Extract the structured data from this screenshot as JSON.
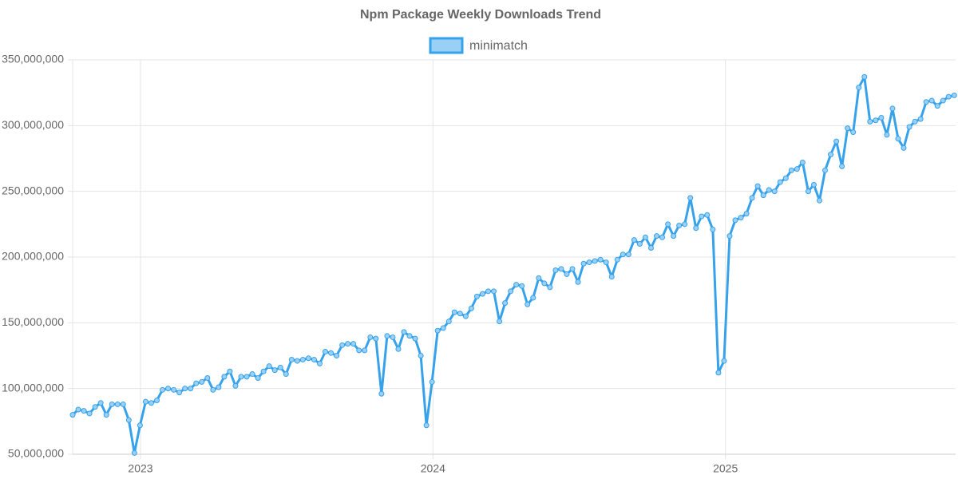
{
  "chart_data": {
    "type": "line",
    "title": "Npm Package Weekly Downloads Trend",
    "legend": "top",
    "grid": true,
    "xlim": [
      2022.768,
      2025.787
    ],
    "xticks": [
      2023,
      2024,
      2025
    ],
    "ylim": [
      50000000,
      350000000
    ],
    "yticks": [
      {
        "value": 50000000,
        "label": "50,000,000"
      },
      {
        "value": 100000000,
        "label": "100,000,000"
      },
      {
        "value": 150000000,
        "label": "150,000,000"
      },
      {
        "value": 200000000,
        "label": "200,000,000"
      },
      {
        "value": 250000000,
        "label": "250,000,000"
      },
      {
        "value": 300000000,
        "label": "300,000,000"
      },
      {
        "value": 350000000,
        "label": "350,000,000"
      }
    ],
    "x": [
      2022.768,
      2022.7872,
      2022.8064,
      2022.8256,
      2022.8448,
      2022.864,
      2022.8832,
      2022.9024,
      2022.9216,
      2022.9408,
      2022.96,
      2022.9792,
      2022.9984,
      2023.0176,
      2023.0368,
      2023.056,
      2023.0752,
      2023.0944,
      2023.1136,
      2023.1328,
      2023.152,
      2023.1712,
      2023.1904,
      2023.2096,
      2023.2288,
      2023.248,
      2023.2672,
      2023.2864,
      2023.3056,
      2023.3248,
      2023.344,
      2023.3632,
      2023.3824,
      2023.4016,
      2023.4208,
      2023.44,
      2023.4592,
      2023.4784,
      2023.4976,
      2023.5168,
      2023.536,
      2023.5552,
      2023.5744,
      2023.5936,
      2023.6128,
      2023.632,
      2023.6512,
      2023.6704,
      2023.6896,
      2023.7088,
      2023.728,
      2023.7472,
      2023.7664,
      2023.7856,
      2023.8048,
      2023.824,
      2023.8432,
      2023.8624,
      2023.8816,
      2023.9008,
      2023.92,
      2023.9392,
      2023.9584,
      2023.9776,
      2023.9968,
      2024.016,
      2024.0352,
      2024.0544,
      2024.0736,
      2024.0928,
      2024.112,
      2024.1312,
      2024.1504,
      2024.1696,
      2024.1888,
      2024.208,
      2024.2272,
      2024.2464,
      2024.2656,
      2024.2848,
      2024.304,
      2024.3232,
      2024.3424,
      2024.3616,
      2024.3808,
      2024.4,
      2024.4192,
      2024.4384,
      2024.4576,
      2024.4768,
      2024.496,
      2024.5152,
      2024.5344,
      2024.5536,
      2024.5728,
      2024.592,
      2024.6112,
      2024.6304,
      2024.6496,
      2024.6688,
      2024.688,
      2024.7072,
      2024.7264,
      2024.7456,
      2024.7648,
      2024.784,
      2024.8032,
      2024.8224,
      2024.8416,
      2024.8608,
      2024.88,
      2024.8992,
      2024.9184,
      2024.9376,
      2024.9568,
      2024.976,
      2024.9952,
      2025.0144,
      2025.0336,
      2025.0528,
      2025.072,
      2025.0912,
      2025.1104,
      2025.1296,
      2025.1488,
      2025.168,
      2025.1872,
      2025.2064,
      2025.2256,
      2025.2448,
      2025.264,
      2025.2832,
      2025.3024,
      2025.3216,
      2025.3408,
      2025.36,
      2025.3792,
      2025.3984,
      2025.4176,
      2025.4368,
      2025.456,
      2025.4752,
      2025.4944,
      2025.5136,
      2025.5328,
      2025.552,
      2025.5712,
      2025.5904,
      2025.6096,
      2025.6288,
      2025.648,
      2025.6672,
      2025.6864,
      2025.7056,
      2025.7248,
      2025.744,
      2025.7632,
      2025.7824
    ],
    "series": [
      {
        "name": "minimatch",
        "color": "#36a2eb",
        "fill": "#9ad0f5",
        "values": [
          80000000,
          84000000,
          83000000,
          81000000,
          86000000,
          89000000,
          80000000,
          88000000,
          88000000,
          88000000,
          76000000,
          51000000,
          72000000,
          90000000,
          89000000,
          91000000,
          99000000,
          100000000,
          99000000,
          97000000,
          100000000,
          100000000,
          104000000,
          105000000,
          108000000,
          99000000,
          101000000,
          109000000,
          113000000,
          102000000,
          109000000,
          109000000,
          111000000,
          108000000,
          113000000,
          117000000,
          114000000,
          116000000,
          111000000,
          122000000,
          121000000,
          122000000,
          123000000,
          122000000,
          119000000,
          128000000,
          127000000,
          125000000,
          133000000,
          134000000,
          134000000,
          129000000,
          129000000,
          139000000,
          138000000,
          96000000,
          140000000,
          139000000,
          130000000,
          143000000,
          140000000,
          138000000,
          125000000,
          72000000,
          105000000,
          144000000,
          146000000,
          151000000,
          158000000,
          157000000,
          155000000,
          161000000,
          170000000,
          172000000,
          174000000,
          174000000,
          151000000,
          165000000,
          174000000,
          179000000,
          178000000,
          164000000,
          169000000,
          184000000,
          180000000,
          177000000,
          190000000,
          191000000,
          187000000,
          191000000,
          181000000,
          195000000,
          196000000,
          197000000,
          198000000,
          196000000,
          185000000,
          198000000,
          202000000,
          202000000,
          213000000,
          210000000,
          215000000,
          207000000,
          216000000,
          215000000,
          225000000,
          216000000,
          224000000,
          225000000,
          245000000,
          222000000,
          231000000,
          232000000,
          221000000,
          112000000,
          121000000,
          216000000,
          228000000,
          230000000,
          233000000,
          245000000,
          254000000,
          247000000,
          251000000,
          250000000,
          257000000,
          260000000,
          266000000,
          267000000,
          272000000,
          250000000,
          255000000,
          243000000,
          266000000,
          278000000,
          288000000,
          269000000,
          298000000,
          295000000,
          329000000,
          337000000,
          303000000,
          304000000,
          306000000,
          293000000,
          313000000,
          290000000,
          283000000,
          299000000,
          303000000,
          305000000,
          318000000,
          319000000,
          315000000,
          319000000,
          322000000,
          323000000
        ]
      }
    ]
  }
}
